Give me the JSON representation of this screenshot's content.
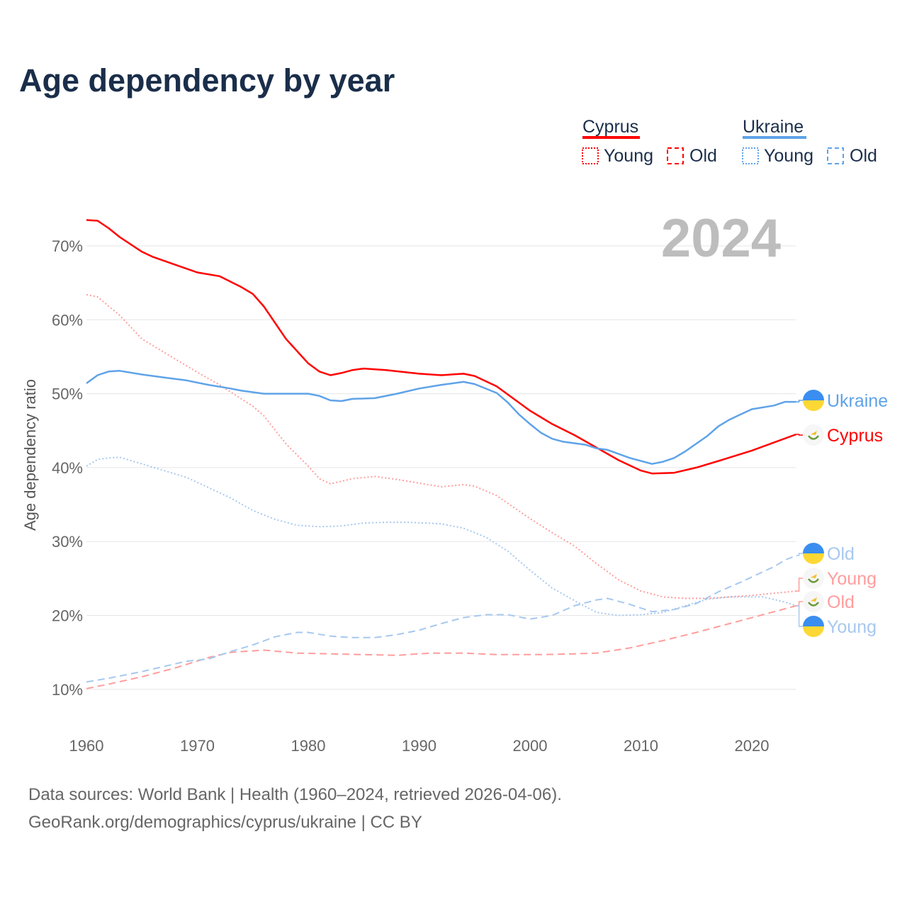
{
  "title": "Age dependency by year",
  "year_badge": "2024",
  "footer": {
    "line1": "Data sources: World Bank | Health (1960–2024, retrieved 2026-04-06).",
    "line2": "GeoRank.org/demographics/cyprus/ukraine | CC BY"
  },
  "legend": {
    "groups": [
      {
        "name": "Cyprus",
        "color": "#ff0000",
        "light": "#ff9d9d",
        "young": "Young",
        "old": "Old"
      },
      {
        "name": "Ukraine",
        "color": "#5fa3e8",
        "light": "#a7c8ef",
        "young": "Young",
        "old": "Old"
      }
    ]
  },
  "chart_data": {
    "type": "line",
    "title": "Age dependency by year",
    "xlabel": "",
    "ylabel": "Age dependency ratio",
    "xlim": [
      1960,
      2024
    ],
    "ylim": [
      10,
      70
    ],
    "xticks": [
      "1960",
      "1970",
      "1980",
      "1990",
      "2000",
      "2010",
      "2020"
    ],
    "yticks": [
      "10%",
      "20%",
      "30%",
      "40%",
      "50%",
      "60%",
      "70%"
    ],
    "grid": true,
    "series": [
      {
        "name": "Ukraine",
        "label": "Ukraine",
        "country": "Ukraine",
        "style": "solid",
        "color": "#5fa3e8",
        "points": [
          [
            1960,
            51.4
          ],
          [
            1961,
            52.5
          ],
          [
            1962,
            53
          ],
          [
            1963,
            53.1
          ],
          [
            1965,
            52.6
          ],
          [
            1967,
            52.2
          ],
          [
            1969,
            51.8
          ],
          [
            1971,
            51.2
          ],
          [
            1973,
            50.7
          ],
          [
            1974,
            50.4
          ],
          [
            1976,
            50
          ],
          [
            1980,
            50
          ],
          [
            1981,
            49.7
          ],
          [
            1982,
            49.1
          ],
          [
            1983,
            49
          ],
          [
            1984,
            49.3
          ],
          [
            1986,
            49.4
          ],
          [
            1988,
            50
          ],
          [
            1990,
            50.7
          ],
          [
            1992,
            51.2
          ],
          [
            1994,
            51.6
          ],
          [
            1995,
            51.3
          ],
          [
            1997,
            50.1
          ],
          [
            1998,
            48.8
          ],
          [
            1999,
            47.2
          ],
          [
            2000,
            45.9
          ],
          [
            2001,
            44.7
          ],
          [
            2002,
            43.9
          ],
          [
            2003,
            43.5
          ],
          [
            2005,
            43.1
          ],
          [
            2006,
            42.6
          ],
          [
            2007,
            42.4
          ],
          [
            2009,
            41.3
          ],
          [
            2010,
            40.9
          ],
          [
            2011,
            40.5
          ],
          [
            2012,
            40.8
          ],
          [
            2013,
            41.3
          ],
          [
            2014,
            42.2
          ],
          [
            2016,
            44.3
          ],
          [
            2017,
            45.6
          ],
          [
            2018,
            46.5
          ],
          [
            2019,
            47.2
          ],
          [
            2020,
            47.9
          ],
          [
            2022,
            48.4
          ],
          [
            2023,
            48.9
          ],
          [
            2024,
            48.9
          ]
        ]
      },
      {
        "name": "Cyprus",
        "label": "Cyprus",
        "country": "Cyprus",
        "style": "solid",
        "color": "#ff0000",
        "points": [
          [
            1960,
            73.5
          ],
          [
            1961,
            73.4
          ],
          [
            1962,
            72.4
          ],
          [
            1963,
            71.2
          ],
          [
            1965,
            69.2
          ],
          [
            1966,
            68.5
          ],
          [
            1970,
            66.4
          ],
          [
            1972,
            65.9
          ],
          [
            1974,
            64.4
          ],
          [
            1975,
            63.5
          ],
          [
            1976,
            61.8
          ],
          [
            1978,
            57.4
          ],
          [
            1980,
            54.1
          ],
          [
            1981,
            53
          ],
          [
            1982,
            52.5
          ],
          [
            1983,
            52.8
          ],
          [
            1984,
            53.2
          ],
          [
            1985,
            53.4
          ],
          [
            1987,
            53.2
          ],
          [
            1990,
            52.7
          ],
          [
            1992,
            52.5
          ],
          [
            1994,
            52.7
          ],
          [
            1995,
            52.4
          ],
          [
            1997,
            51
          ],
          [
            2000,
            47.7
          ],
          [
            2002,
            45.9
          ],
          [
            2004,
            44.4
          ],
          [
            2006,
            42.7
          ],
          [
            2008,
            41
          ],
          [
            2010,
            39.6
          ],
          [
            2011,
            39.2
          ],
          [
            2013,
            39.3
          ],
          [
            2015,
            40
          ],
          [
            2017,
            40.9
          ],
          [
            2020,
            42.3
          ],
          [
            2022,
            43.4
          ],
          [
            2024,
            44.5
          ]
        ]
      },
      {
        "name": "Ukraine Old",
        "label": "Old",
        "country": "Ukraine",
        "style": "dashed",
        "color": "#a7c8ef",
        "points": [
          [
            1960,
            11
          ],
          [
            1962,
            11.5
          ],
          [
            1965,
            12.4
          ],
          [
            1969,
            13.8
          ],
          [
            1971,
            14.1
          ],
          [
            1973,
            15.1
          ],
          [
            1975,
            16
          ],
          [
            1977,
            17.1
          ],
          [
            1979,
            17.7
          ],
          [
            1980,
            17.7
          ],
          [
            1982,
            17.2
          ],
          [
            1984,
            17
          ],
          [
            1986,
            17
          ],
          [
            1988,
            17.4
          ],
          [
            1990,
            18
          ],
          [
            1992,
            18.9
          ],
          [
            1994,
            19.7
          ],
          [
            1996,
            20.1
          ],
          [
            1998,
            20.1
          ],
          [
            2000,
            19.5
          ],
          [
            2002,
            20
          ],
          [
            2004,
            21.3
          ],
          [
            2006,
            22.1
          ],
          [
            2007,
            22.3
          ],
          [
            2009,
            21.5
          ],
          [
            2011,
            20.5
          ],
          [
            2013,
            20.8
          ],
          [
            2015,
            21.6
          ],
          [
            2017,
            23.2
          ],
          [
            2019,
            24.5
          ],
          [
            2021,
            25.9
          ],
          [
            2022,
            26.6
          ],
          [
            2023,
            27.5
          ],
          [
            2024,
            28.1
          ]
        ]
      },
      {
        "name": "Cyprus Young",
        "label": "Young",
        "country": "Cyprus",
        "style": "dotted",
        "color": "#ff9d9d",
        "points": [
          [
            1960,
            63.4
          ],
          [
            1961,
            63.1
          ],
          [
            1963,
            60.6
          ],
          [
            1965,
            57.4
          ],
          [
            1967,
            55.6
          ],
          [
            1970,
            52.9
          ],
          [
            1972,
            51.2
          ],
          [
            1975,
            48.3
          ],
          [
            1976,
            47
          ],
          [
            1978,
            43.2
          ],
          [
            1980,
            40.2
          ],
          [
            1981,
            38.5
          ],
          [
            1982,
            37.8
          ],
          [
            1984,
            38.5
          ],
          [
            1986,
            38.8
          ],
          [
            1988,
            38.4
          ],
          [
            1990,
            37.9
          ],
          [
            1992,
            37.4
          ],
          [
            1994,
            37.7
          ],
          [
            1995,
            37.5
          ],
          [
            1997,
            36.2
          ],
          [
            2000,
            33.1
          ],
          [
            2002,
            31.2
          ],
          [
            2004,
            29.4
          ],
          [
            2006,
            27
          ],
          [
            2008,
            24.8
          ],
          [
            2010,
            23.3
          ],
          [
            2012,
            22.5
          ],
          [
            2014,
            22.3
          ],
          [
            2016,
            22.3
          ],
          [
            2018,
            22.5
          ],
          [
            2020,
            22.7
          ],
          [
            2022,
            23
          ],
          [
            2024,
            23.3
          ]
        ]
      },
      {
        "name": "Cyprus Old",
        "label": "Old",
        "country": "Cyprus",
        "style": "dashed",
        "color": "#ff9d9d",
        "points": [
          [
            1960,
            10.1
          ],
          [
            1962,
            10.7
          ],
          [
            1965,
            11.7
          ],
          [
            1968,
            12.9
          ],
          [
            1971,
            14.3
          ],
          [
            1973,
            15
          ],
          [
            1976,
            15.3
          ],
          [
            1979,
            14.9
          ],
          [
            1982,
            14.8
          ],
          [
            1985,
            14.7
          ],
          [
            1988,
            14.6
          ],
          [
            1991,
            14.9
          ],
          [
            1994,
            14.9
          ],
          [
            1997,
            14.7
          ],
          [
            2001,
            14.7
          ],
          [
            2004,
            14.8
          ],
          [
            2006,
            14.9
          ],
          [
            2009,
            15.6
          ],
          [
            2012,
            16.6
          ],
          [
            2015,
            17.7
          ],
          [
            2018,
            18.9
          ],
          [
            2021,
            20.1
          ],
          [
            2024,
            21.3
          ]
        ]
      },
      {
        "name": "Ukraine Young",
        "label": "Young",
        "country": "Ukraine",
        "style": "dotted",
        "color": "#a7c8ef",
        "points": [
          [
            1960,
            40.2
          ],
          [
            1961,
            41.1
          ],
          [
            1962,
            41.3
          ],
          [
            1963,
            41.4
          ],
          [
            1965,
            40.5
          ],
          [
            1967,
            39.6
          ],
          [
            1969,
            38.7
          ],
          [
            1971,
            37.3
          ],
          [
            1973,
            35.9
          ],
          [
            1975,
            34.2
          ],
          [
            1977,
            33
          ],
          [
            1979,
            32.2
          ],
          [
            1981,
            32
          ],
          [
            1983,
            32.1
          ],
          [
            1985,
            32.5
          ],
          [
            1987,
            32.6
          ],
          [
            1989,
            32.6
          ],
          [
            1992,
            32.4
          ],
          [
            1994,
            31.8
          ],
          [
            1996,
            30.6
          ],
          [
            1998,
            28.7
          ],
          [
            2000,
            26.1
          ],
          [
            2002,
            23.7
          ],
          [
            2004,
            22
          ],
          [
            2006,
            20.4
          ],
          [
            2008,
            20
          ],
          [
            2010,
            20.1
          ],
          [
            2012,
            20.4
          ],
          [
            2014,
            21.3
          ],
          [
            2016,
            22.2
          ],
          [
            2018,
            22.5
          ],
          [
            2021,
            22.5
          ],
          [
            2023,
            21.8
          ],
          [
            2024,
            21.3
          ]
        ]
      }
    ]
  }
}
